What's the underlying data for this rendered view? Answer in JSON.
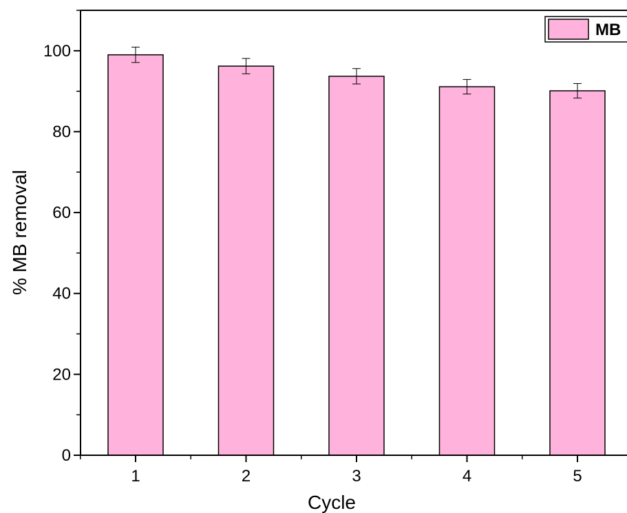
{
  "chart_data": {
    "type": "bar",
    "title": "",
    "xlabel": "Cycle",
    "ylabel": "% MB removal",
    "categories": [
      "1",
      "2",
      "3",
      "4",
      "5"
    ],
    "series": [
      {
        "name": "MB",
        "values": [
          99.0,
          96.2,
          93.7,
          91.1,
          90.1
        ],
        "errors": [
          1.9,
          1.9,
          1.9,
          1.8,
          1.8
        ],
        "color": "#ffb3dc"
      }
    ],
    "ylim": [
      0,
      110
    ],
    "yticks": [
      "0",
      "20",
      "40",
      "60",
      "80",
      "100"
    ],
    "grid": false,
    "legend": "top-right"
  }
}
